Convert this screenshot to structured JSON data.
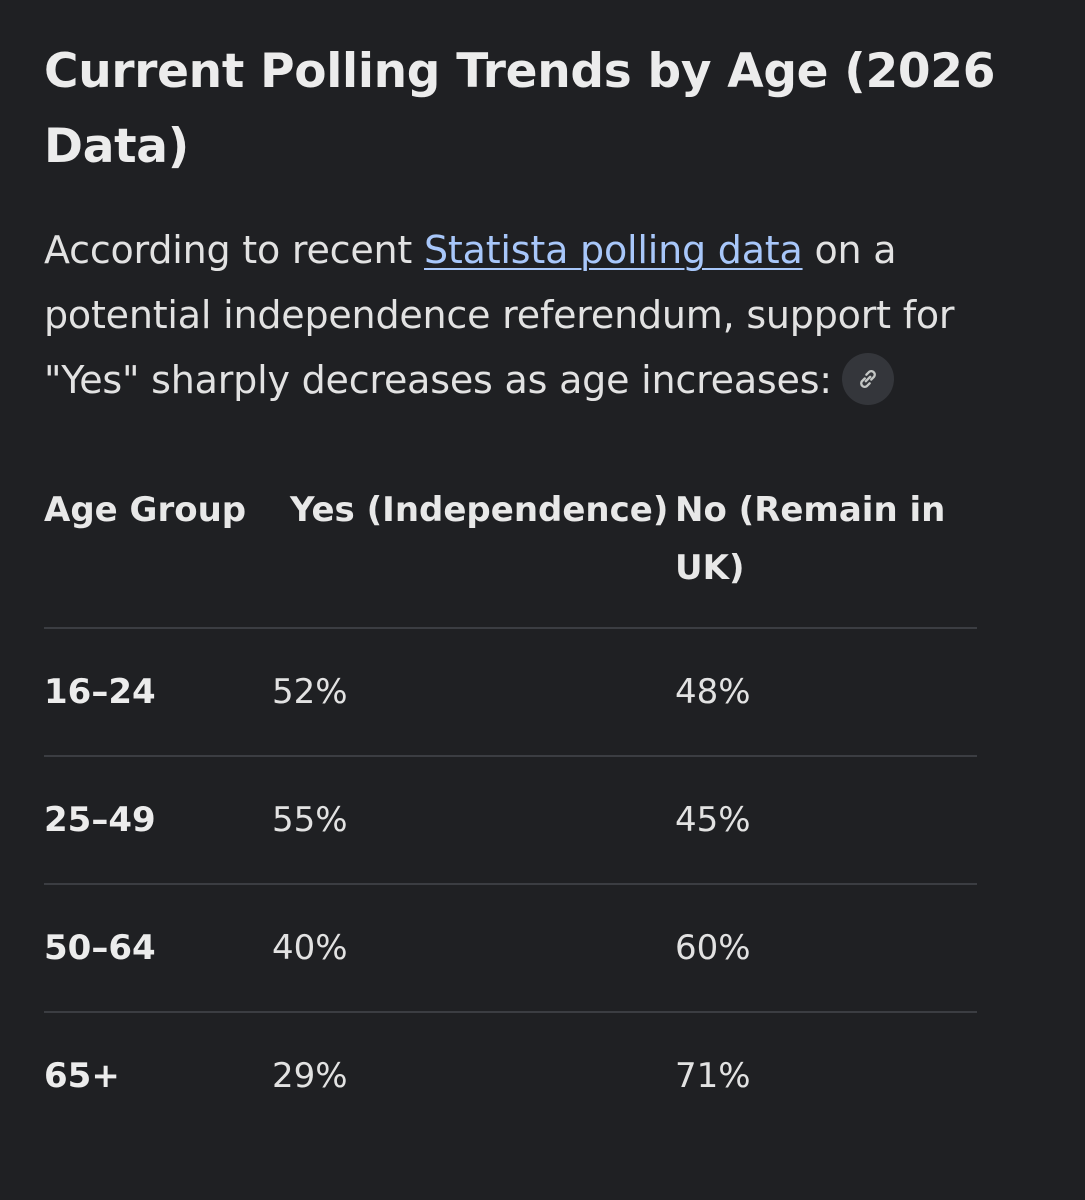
{
  "heading": "Current Polling Trends by Age (2026 Data)",
  "intro": {
    "before_link": "According to recent ",
    "link_text": "Statista polling data",
    "after_link": " on a potential independence referendum, support for \"Yes\" sharply decreases as age increases:",
    "source_chip_icon": "link-icon"
  },
  "table": {
    "headers": [
      "Age Group",
      "Yes (Independence)",
      "No (Remain in UK)"
    ],
    "rows": [
      {
        "age": "16–24",
        "yes": "52%",
        "no": "48%"
      },
      {
        "age": "25–49",
        "yes": "55%",
        "no": "45%"
      },
      {
        "age": "50–64",
        "yes": "40%",
        "no": "60%"
      },
      {
        "age": "65+",
        "yes": "29%",
        "no": "71%"
      }
    ]
  },
  "colors": {
    "background": "#1f2023",
    "link": "#a8c7fa",
    "divider": "#3b3d42"
  }
}
